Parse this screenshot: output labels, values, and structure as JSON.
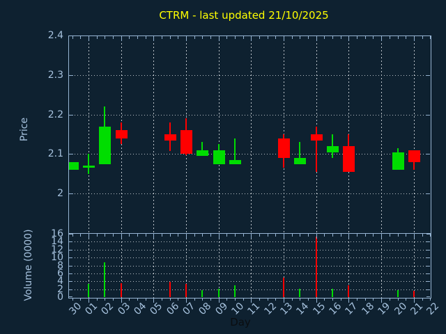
{
  "title": {
    "text": "CTRM - last updated 21/10/2025",
    "color": "#ffff00"
  },
  "colors": {
    "background": "#0e2130",
    "axis": "#96b4d2",
    "tick_text": "#a6c2de",
    "grid": "#bcc3c9",
    "up": "#00dd00",
    "down": "#ff0000",
    "xaxis_title_text": "#0a0d10"
  },
  "price_axis": {
    "label": "Price",
    "tick_labels": [
      "2.4",
      "2.3",
      "2.2",
      "2.1",
      "2"
    ],
    "tick_values": [
      2.4,
      2.3,
      2.2,
      2.1,
      2.0
    ],
    "min": 1.9,
    "max": 2.4
  },
  "volume_axis": {
    "label": "Volume (0000)",
    "tick_labels": [
      "16",
      "14",
      "12",
      "10",
      "8",
      "6",
      "4",
      "2",
      "0"
    ],
    "tick_values": [
      16,
      14,
      12,
      10,
      8,
      6,
      4,
      2,
      0
    ],
    "min": 0,
    "max": 16
  },
  "x_axis": {
    "label": "Day",
    "tick_labels": [
      "30",
      "01",
      "02",
      "03",
      "04",
      "05",
      "06",
      "07",
      "08",
      "09",
      "10",
      "11",
      "12",
      "13",
      "14",
      "15",
      "16",
      "17",
      "18",
      "19",
      "20",
      "21",
      "22"
    ],
    "gridline_days": [
      "01",
      "03",
      "05",
      "07",
      "09",
      "11",
      "13",
      "15",
      "17",
      "19",
      "21"
    ]
  },
  "chart_data": {
    "type": "candlestick",
    "title": "CTRM - last updated 21/10/2025",
    "xlabel": "Day",
    "ylabel_top": "Price",
    "ylabel_bottom": "Volume (0000)",
    "price_ylim": [
      1.9,
      2.4
    ],
    "volume_ylim": [
      0,
      16
    ],
    "grid": "on",
    "x_categories": [
      "30",
      "01",
      "02",
      "03",
      "04",
      "05",
      "06",
      "07",
      "08",
      "09",
      "10",
      "11",
      "12",
      "13",
      "14",
      "15",
      "16",
      "17",
      "18",
      "19",
      "20",
      "21",
      "22"
    ],
    "candles": [
      {
        "day": "30",
        "i": 0,
        "open": 2.06,
        "high": 2.08,
        "low": 2.06,
        "close": 2.08,
        "volume": 0.0
      },
      {
        "day": "01",
        "i": 1,
        "open": 2.065,
        "high": 2.1,
        "low": 2.05,
        "close": 2.07,
        "volume": 3.4
      },
      {
        "day": "02",
        "i": 2,
        "open": 2.075,
        "high": 2.22,
        "low": 2.075,
        "close": 2.17,
        "volume": 8.8
      },
      {
        "day": "03",
        "i": 3,
        "open": 2.16,
        "high": 2.18,
        "low": 2.125,
        "close": 2.14,
        "volume": 3.6
      },
      {
        "day": "06",
        "i": 6,
        "open": 2.15,
        "high": 2.18,
        "low": 2.108,
        "close": 2.135,
        "volume": 3.8
      },
      {
        "day": "07",
        "i": 7,
        "open": 2.16,
        "high": 2.19,
        "low": 2.098,
        "close": 2.1,
        "volume": 3.4
      },
      {
        "day": "08",
        "i": 8,
        "open": 2.095,
        "high": 2.13,
        "low": 2.095,
        "close": 2.11,
        "volume": 1.7
      },
      {
        "day": "09",
        "i": 9,
        "open": 2.075,
        "high": 2.125,
        "low": 2.075,
        "close": 2.11,
        "volume": 2.1
      },
      {
        "day": "10",
        "i": 10,
        "open": 2.075,
        "high": 2.14,
        "low": 2.075,
        "close": 2.085,
        "volume": 3.0
      },
      {
        "day": "13",
        "i": 13,
        "open": 2.14,
        "high": 2.15,
        "low": 2.065,
        "close": 2.09,
        "volume": 5.0
      },
      {
        "day": "14",
        "i": 14,
        "open": 2.075,
        "high": 2.13,
        "low": 2.075,
        "close": 2.09,
        "volume": 2.1
      },
      {
        "day": "15",
        "i": 15,
        "open": 2.15,
        "high": 2.17,
        "low": 2.055,
        "close": 2.135,
        "volume": 15.3
      },
      {
        "day": "16",
        "i": 16,
        "open": 2.105,
        "high": 2.15,
        "low": 2.09,
        "close": 2.12,
        "volume": 2.1
      },
      {
        "day": "17",
        "i": 17,
        "open": 2.12,
        "high": 2.15,
        "low": 2.055,
        "close": 2.055,
        "volume": 3.0
      },
      {
        "day": "20",
        "i": 20,
        "open": 2.06,
        "high": 2.115,
        "low": 2.06,
        "close": 2.105,
        "volume": 1.8
      },
      {
        "day": "21",
        "i": 21,
        "open": 2.11,
        "high": 2.11,
        "low": 2.06,
        "close": 2.08,
        "volume": 1.5
      }
    ]
  }
}
